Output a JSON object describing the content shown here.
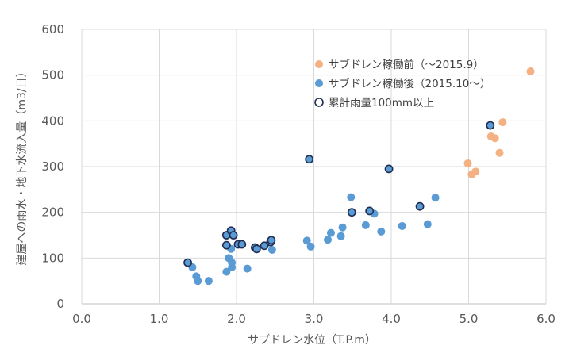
{
  "chart_data": {
    "type": "scatter",
    "xlabel": "サブドレン水位（T.P.m）",
    "ylabel": "建屋への雨水・地下水流入量（m3/日）",
    "xlim": [
      0,
      6
    ],
    "ylim": [
      0,
      600
    ],
    "x_ticks": [
      "0.0",
      "1.0",
      "2.0",
      "3.0",
      "4.0",
      "5.0",
      "6.0"
    ],
    "y_ticks": [
      "0",
      "100",
      "200",
      "300",
      "400",
      "500",
      "600"
    ],
    "grid": true,
    "legend_position": "top-right",
    "series": [
      {
        "name": "サブドレン稼働前（～2015.9）",
        "color": "#F4B183",
        "stroke": "#F4B183",
        "points": [
          [
            4.99,
            307
          ],
          [
            5.04,
            283
          ],
          [
            5.09,
            289
          ],
          [
            5.29,
            366
          ],
          [
            5.34,
            362
          ],
          [
            5.4,
            330
          ],
          [
            5.44,
            397
          ],
          [
            5.8,
            508
          ]
        ]
      },
      {
        "name": "サブドレン稼働後（2015.10～）",
        "color": "#5B9BD5",
        "stroke": "#5B9BD5",
        "points": [
          [
            1.43,
            80
          ],
          [
            1.48,
            60
          ],
          [
            1.5,
            50
          ],
          [
            1.64,
            50
          ],
          [
            1.87,
            70
          ],
          [
            1.9,
            100
          ],
          [
            1.93,
            120
          ],
          [
            1.94,
            90
          ],
          [
            1.94,
            80
          ],
          [
            2.14,
            77
          ],
          [
            2.46,
            118
          ],
          [
            2.91,
            138
          ],
          [
            2.96,
            125
          ],
          [
            3.18,
            140
          ],
          [
            3.22,
            155
          ],
          [
            3.35,
            148
          ],
          [
            3.37,
            167
          ],
          [
            3.48,
            233
          ],
          [
            3.67,
            172
          ],
          [
            3.78,
            197
          ],
          [
            3.87,
            158
          ],
          [
            4.14,
            170
          ],
          [
            4.47,
            174
          ],
          [
            4.57,
            232
          ]
        ]
      },
      {
        "name": "累計雨量100mm以上",
        "color": "#5B9BD5",
        "stroke": "#1F2D50",
        "points": [
          [
            1.37,
            90
          ],
          [
            1.87,
            150
          ],
          [
            1.87,
            128
          ],
          [
            1.93,
            160
          ],
          [
            1.96,
            150
          ],
          [
            2.02,
            130
          ],
          [
            2.07,
            130
          ],
          [
            2.24,
            123
          ],
          [
            2.26,
            120
          ],
          [
            2.36,
            127
          ],
          [
            2.44,
            135
          ],
          [
            2.45,
            139
          ],
          [
            2.94,
            316
          ],
          [
            3.49,
            200
          ],
          [
            3.72,
            203
          ],
          [
            3.97,
            295
          ],
          [
            4.37,
            213
          ],
          [
            5.28,
            390
          ]
        ]
      }
    ]
  }
}
